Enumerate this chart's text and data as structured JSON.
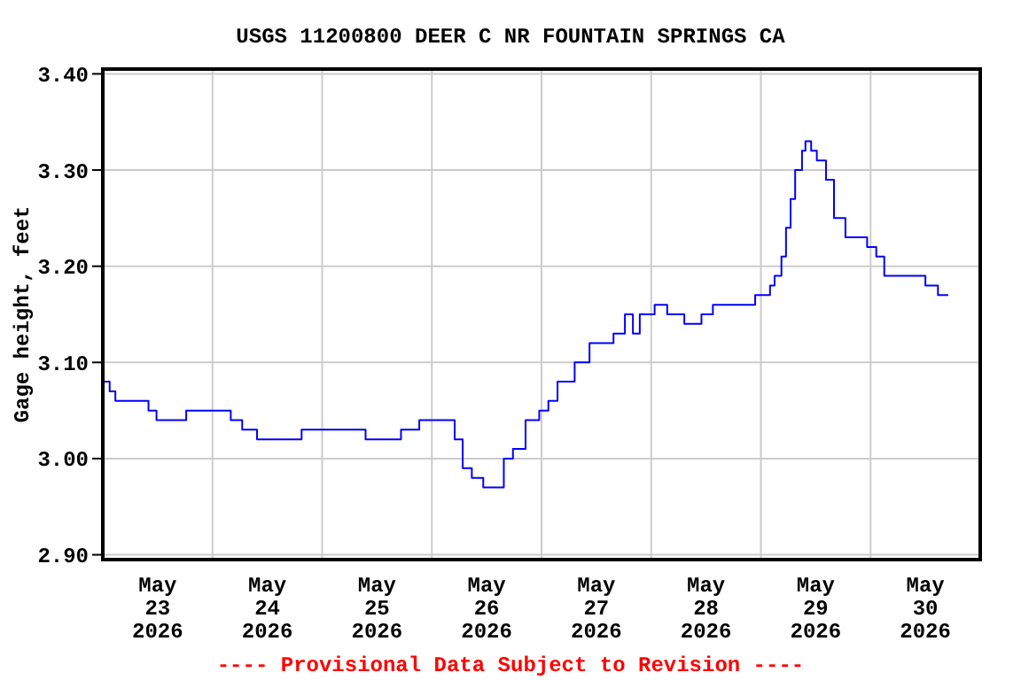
{
  "chart_data": {
    "type": "step",
    "title": "USGS 11200800 DEER C NR FOUNTAIN SPRINGS CA",
    "ylabel": "Gage height, feet",
    "annotations": [
      "---- Provisional Data Subject to Revision ----"
    ],
    "x": [
      "2026-05-23T00:00",
      "2026-05-23T01:30",
      "2026-05-23T02:45",
      "2026-05-23T06:30",
      "2026-05-23T10:00",
      "2026-05-23T11:45",
      "2026-05-23T18:15",
      "2026-05-24T03:15",
      "2026-05-24T04:00",
      "2026-05-24T06:30",
      "2026-05-24T09:45",
      "2026-05-24T16:45",
      "2026-05-24T19:30",
      "2026-05-24T22:30",
      "2026-05-25T09:30",
      "2026-05-25T17:15",
      "2026-05-25T21:15",
      "2026-05-26T04:15",
      "2026-05-26T05:00",
      "2026-05-26T06:45",
      "2026-05-26T08:45",
      "2026-05-26T11:15",
      "2026-05-26T13:30",
      "2026-05-26T15:45",
      "2026-05-26T17:45",
      "2026-05-26T20:30",
      "2026-05-26T23:30",
      "2026-05-27T01:30",
      "2026-05-27T03:30",
      "2026-05-27T05:30",
      "2026-05-27T07:15",
      "2026-05-27T09:15",
      "2026-05-27T10:30",
      "2026-05-27T15:45",
      "2026-05-27T18:15",
      "2026-05-27T20:00",
      "2026-05-27T21:30",
      "2026-05-28T00:45",
      "2026-05-28T03:30",
      "2026-05-28T07:15",
      "2026-05-28T10:30",
      "2026-05-28T11:00",
      "2026-05-28T13:30",
      "2026-05-28T18:45",
      "2026-05-28T22:45",
      "2026-05-29T02:00",
      "2026-05-29T03:00",
      "2026-05-29T04:30",
      "2026-05-29T05:30",
      "2026-05-29T06:30",
      "2026-05-29T07:30",
      "2026-05-29T09:00",
      "2026-05-29T09:45",
      "2026-05-29T11:00",
      "2026-05-29T12:15",
      "2026-05-29T14:15",
      "2026-05-29T16:00",
      "2026-05-29T18:30",
      "2026-05-29T22:00",
      "2026-05-29T23:15",
      "2026-05-30T01:15",
      "2026-05-30T03:00",
      "2026-05-30T08:45",
      "2026-05-30T12:00",
      "2026-05-30T14:30",
      "2026-05-30T14:45",
      "2026-05-30T17:00"
    ],
    "series": [
      {
        "color": "#0000ff",
        "values": [
          3.08,
          3.07,
          3.06,
          3.06,
          3.05,
          3.04,
          3.05,
          3.05,
          3.04,
          3.03,
          3.02,
          3.02,
          3.03,
          3.03,
          3.02,
          3.03,
          3.04,
          3.04,
          3.02,
          2.99,
          2.98,
          2.97,
          2.97,
          3.0,
          3.01,
          3.04,
          3.05,
          3.06,
          3.08,
          3.08,
          3.1,
          3.1,
          3.12,
          3.13,
          3.15,
          3.13,
          3.15,
          3.16,
          3.15,
          3.14,
          3.14,
          3.15,
          3.16,
          3.16,
          3.17,
          3.18,
          3.19,
          3.21,
          3.24,
          3.27,
          3.3,
          3.32,
          3.33,
          3.32,
          3.31,
          3.29,
          3.25,
          3.23,
          3.23,
          3.22,
          3.21,
          3.19,
          3.19,
          3.18,
          3.18,
          3.17,
          3.17
        ]
      }
    ],
    "xlim": [
      "2026-05-23T00:00",
      "2026-05-31T00:00"
    ],
    "xticks": [
      {
        "value": "2026-05-23T00:00",
        "label": null
      },
      {
        "value": "2026-05-23T12:00",
        "label": "May\n23\n2026"
      },
      {
        "value": "2026-05-24T00:00",
        "label": null
      },
      {
        "value": "2026-05-24T12:00",
        "label": "May\n24\n2026"
      },
      {
        "value": "2026-05-25T00:00",
        "label": null
      },
      {
        "value": "2026-05-25T12:00",
        "label": "May\n25\n2026"
      },
      {
        "value": "2026-05-26T00:00",
        "label": null
      },
      {
        "value": "2026-05-26T12:00",
        "label": "May\n26\n2026"
      },
      {
        "value": "2026-05-27T00:00",
        "label": null
      },
      {
        "value": "2026-05-27T12:00",
        "label": "May\n27\n2026"
      },
      {
        "value": "2026-05-28T00:00",
        "label": null
      },
      {
        "value": "2026-05-28T12:00",
        "label": "May\n28\n2026"
      },
      {
        "value": "2026-05-29T00:00",
        "label": null
      },
      {
        "value": "2026-05-29T12:00",
        "label": "May\n29\n2026"
      },
      {
        "value": "2026-05-30T00:00",
        "label": null
      },
      {
        "value": "2026-05-30T12:00",
        "label": "May\n30\n2026"
      },
      {
        "value": "2026-05-31T00:00",
        "label": null
      }
    ],
    "ylim": [
      2.895,
      3.405
    ],
    "yticks": [
      {
        "value": 2.9,
        "label": "2.90"
      },
      {
        "value": 3.0,
        "label": "3.00"
      },
      {
        "value": 3.1,
        "label": "3.10"
      },
      {
        "value": 3.2,
        "label": "3.20"
      },
      {
        "value": 3.3,
        "label": "3.30"
      },
      {
        "value": 3.4,
        "label": "3.40"
      }
    ],
    "grid": true,
    "marker": "none",
    "line_style": "solid"
  }
}
